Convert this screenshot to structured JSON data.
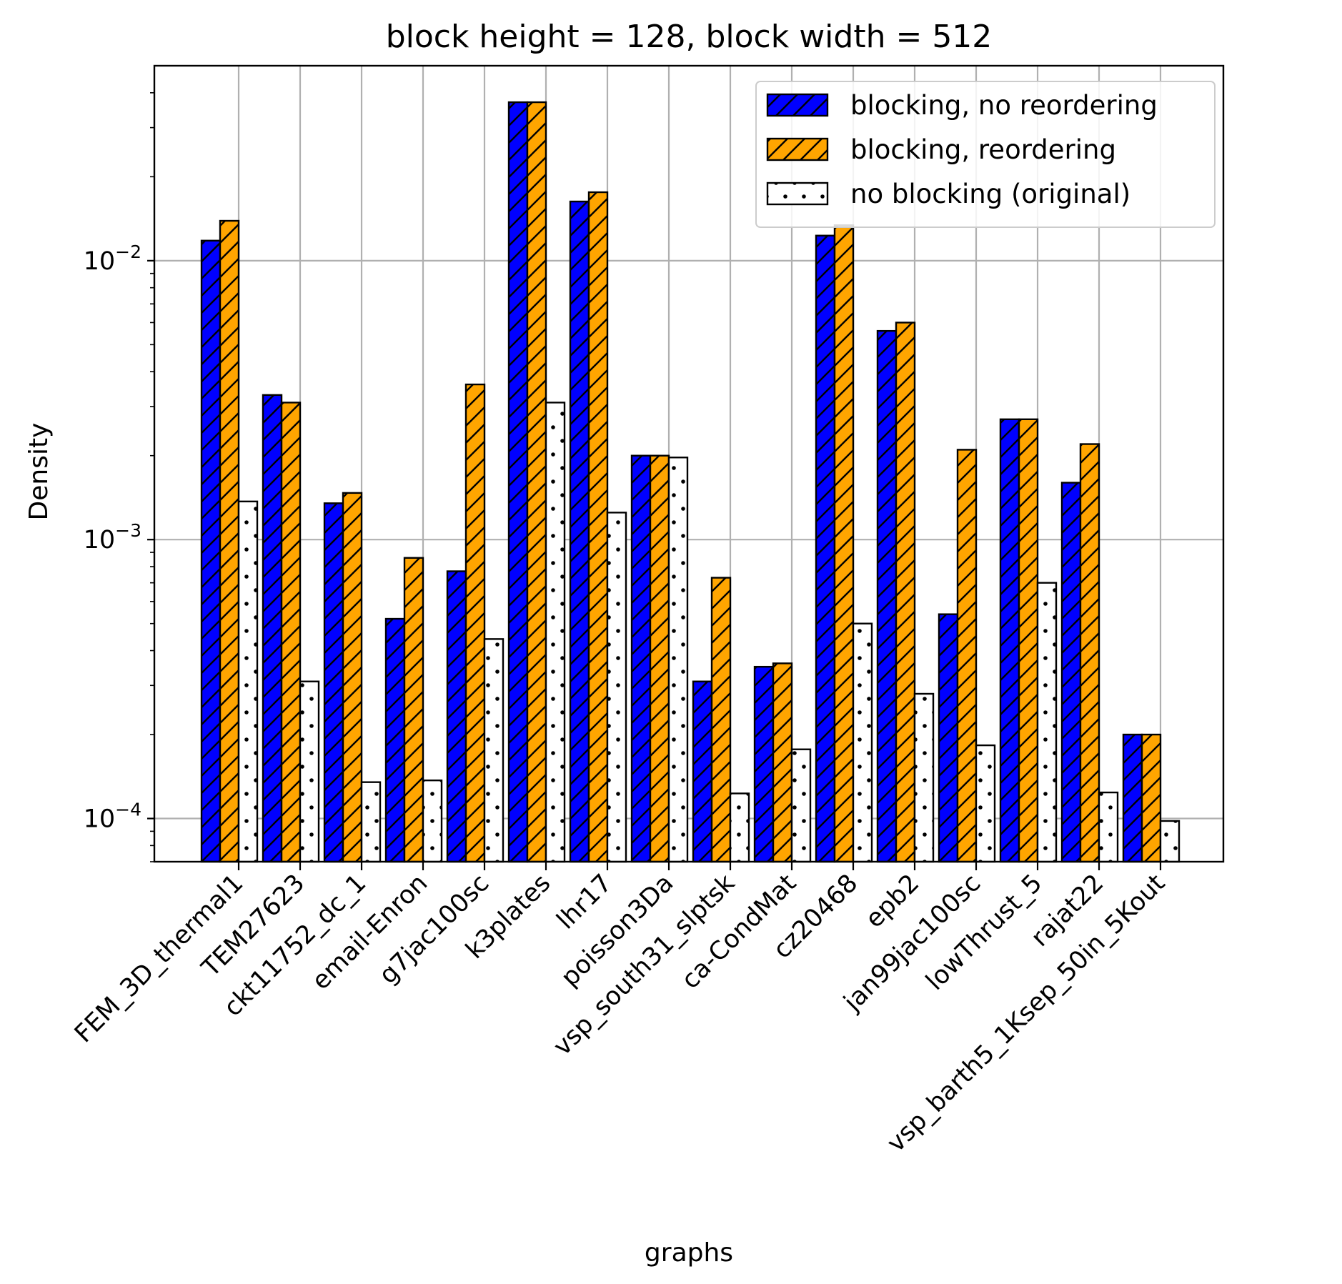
{
  "chart_data": {
    "type": "bar",
    "title": "block height = 128, block width = 512",
    "xlabel": "graphs",
    "ylabel": "Density",
    "yscale": "log",
    "ylim": [
      7e-05,
      0.05
    ],
    "y_major_ticks": [
      {
        "value": 0.0001,
        "base": "10",
        "exp": "−4"
      },
      {
        "value": 0.001,
        "base": "10",
        "exp": "−3"
      },
      {
        "value": 0.01,
        "base": "10",
        "exp": "−2"
      }
    ],
    "grid": true,
    "legend_position": "top-right",
    "categories": [
      "FEM_3D_thermal1",
      "TEM27623",
      "ckt11752_dc_1",
      "email-Enron",
      "g7jac100sc",
      "k3plates",
      "lhr17",
      "poisson3Da",
      "vsp_south31_slptsk",
      "ca-CondMat",
      "cz20468",
      "epb2",
      "jan99jac100sc",
      "lowThrust_5",
      "rajat22",
      "vsp_barth5_1Ksep_50in_5Kout"
    ],
    "series": [
      {
        "name": "blocking, no reordering",
        "color": "#0000ff",
        "pattern": "hatch",
        "values": [
          0.0118,
          0.0033,
          0.00135,
          0.00052,
          0.00077,
          0.037,
          0.0163,
          0.002,
          0.00031,
          0.00035,
          0.0123,
          0.0056,
          0.00054,
          0.0027,
          0.0016,
          0.0002
        ]
      },
      {
        "name": "blocking, reordering",
        "color": "#ffa500",
        "pattern": "hatch",
        "values": [
          0.0139,
          0.0031,
          0.00147,
          0.00086,
          0.0036,
          0.037,
          0.0176,
          0.002,
          0.00073,
          0.00036,
          0.0134,
          0.006,
          0.0021,
          0.0027,
          0.0022,
          0.0002
        ]
      },
      {
        "name": "no blocking (original)",
        "color": "#ffffff",
        "pattern": "dots",
        "values": [
          0.00137,
          0.00031,
          0.000135,
          0.000137,
          0.00044,
          0.0031,
          0.00125,
          0.00197,
          0.000123,
          0.000177,
          0.0005,
          0.00028,
          0.000183,
          0.0007,
          0.000124,
          9.8e-05
        ]
      }
    ]
  }
}
